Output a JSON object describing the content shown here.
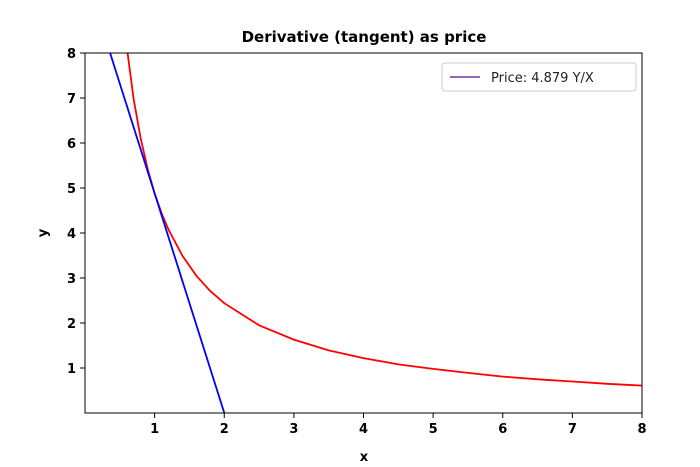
{
  "chart_data": {
    "type": "line",
    "title": "Derivative (tangent) as price",
    "xlabel": "x",
    "ylabel": "y",
    "xlim": [
      0,
      8
    ],
    "ylim": [
      0,
      8
    ],
    "x_ticks": [
      1,
      2,
      3,
      4,
      5,
      6,
      7,
      8
    ],
    "y_ticks": [
      1,
      2,
      3,
      4,
      5,
      6,
      7,
      8
    ],
    "grid": false,
    "legend_position": "top-right",
    "legend": [
      {
        "label": "Price: 4.879 Y/X",
        "color": "#9467bd"
      }
    ],
    "series": [
      {
        "color": "#ff0000",
        "points": [
          [
            0.6,
            8.13
          ],
          [
            0.7,
            6.97
          ],
          [
            0.8,
            6.1
          ],
          [
            0.9,
            5.42
          ],
          [
            1.0,
            4.88
          ],
          [
            1.1,
            4.44
          ],
          [
            1.2,
            4.07
          ],
          [
            1.4,
            3.49
          ],
          [
            1.6,
            3.05
          ],
          [
            1.8,
            2.71
          ],
          [
            2.0,
            2.44
          ],
          [
            2.5,
            1.95
          ],
          [
            3.0,
            1.63
          ],
          [
            3.5,
            1.39
          ],
          [
            4.0,
            1.22
          ],
          [
            4.5,
            1.08
          ],
          [
            5.0,
            0.98
          ],
          [
            5.5,
            0.89
          ],
          [
            6.0,
            0.81
          ],
          [
            6.5,
            0.75
          ],
          [
            7.0,
            0.7
          ],
          [
            7.5,
            0.65
          ],
          [
            8.0,
            0.61
          ]
        ]
      },
      {
        "color": "#0000ff",
        "points": [
          [
            0.36,
            8.0
          ],
          [
            2.0,
            0.0
          ]
        ]
      }
    ]
  }
}
